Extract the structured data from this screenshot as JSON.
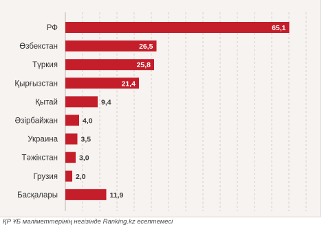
{
  "chart_data": {
    "type": "bar",
    "orientation": "horizontal",
    "categories": [
      "РФ",
      "Өзбекстан",
      "Түркия",
      "Қырғызстан",
      "Қытай",
      "Әзірбайжан",
      "Украина",
      "Тәжікстан",
      "Грузия",
      "Басқалары"
    ],
    "values": [
      65.1,
      26.5,
      25.8,
      21.4,
      9.4,
      4.0,
      3.5,
      3.0,
      2.0,
      11.9
    ],
    "value_labels": [
      "65,1",
      "26,5",
      "25,8",
      "21,4",
      "9,4",
      "4,0",
      "3,5",
      "3,0",
      "2,0",
      "11,9"
    ],
    "xlim": [
      0,
      70
    ],
    "grid": "vertical dashed",
    "bar_color": "#c41e2a",
    "grid_color": "#d6cfcb"
  },
  "source_note": "ҚР ҰБ мәліметтерінің негізінде Ranking.kz есептемесі"
}
